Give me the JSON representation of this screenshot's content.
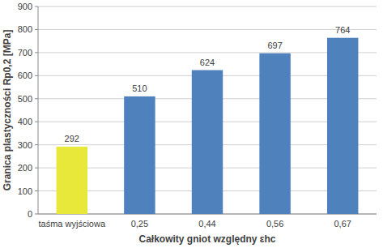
{
  "chart_data": {
    "type": "bar",
    "y_label": "Granica plastyczności Rp0,2 [MPa]",
    "x_label": "Całkowity gniot względny εhc",
    "categories": [
      "taśma wyjściowa",
      "0,25",
      "0,44",
      "0,56",
      "0,67"
    ],
    "values": [
      292,
      510,
      624,
      697,
      764
    ],
    "colors": [
      "#e8e83a",
      "#4f81bd",
      "#4f81bd",
      "#4f81bd",
      "#4f81bd"
    ],
    "ylim": [
      0,
      900
    ],
    "yticks": [
      0,
      100,
      200,
      300,
      400,
      500,
      600,
      700,
      800,
      900
    ],
    "grid": true,
    "data_labels": true
  }
}
